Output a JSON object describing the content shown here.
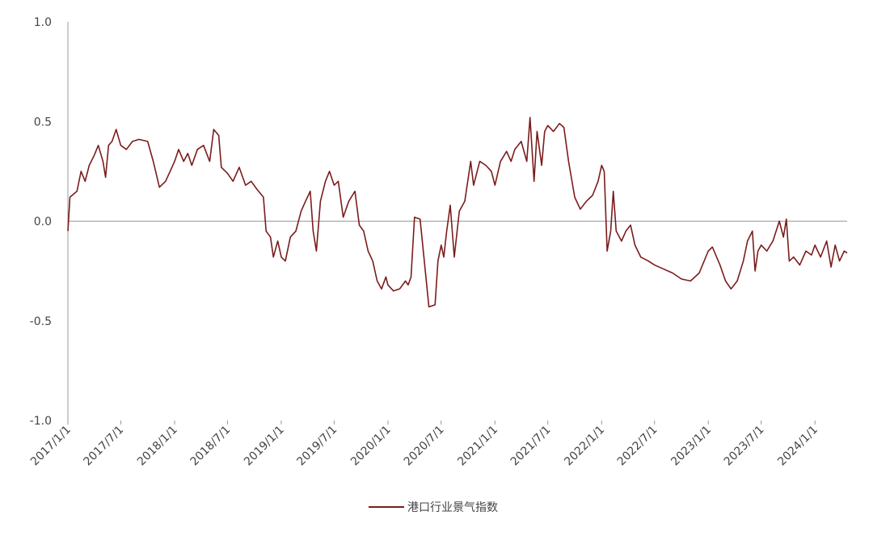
{
  "chart_data": {
    "type": "line",
    "x": [
      "2017/1/1",
      "2017/1/8",
      "2017/2/1",
      "2017/2/15",
      "2017/3/1",
      "2017/3/15",
      "2017/4/1",
      "2017/4/15",
      "2017/5/1",
      "2017/5/10",
      "2017/5/20",
      "2017/6/1",
      "2017/6/15",
      "2017/7/1",
      "2017/7/20",
      "2017/8/10",
      "2017/9/1",
      "2017/10/1",
      "2017/10/20",
      "2017/11/10",
      "2017/12/1",
      "2017/12/20",
      "2018/1/1",
      "2018/1/15",
      "2018/2/1",
      "2018/2/15",
      "2018/3/1",
      "2018/3/20",
      "2018/4/10",
      "2018/5/1",
      "2018/5/15",
      "2018/6/1",
      "2018/6/10",
      "2018/7/1",
      "2018/7/20",
      "2018/8/10",
      "2018/9/1",
      "2018/9/20",
      "2018/10/10",
      "2018/11/1",
      "2018/11/10",
      "2018/11/25",
      "2018/12/5",
      "2018/12/20",
      "2019/1/1",
      "2019/1/15",
      "2019/2/1",
      "2019/2/20",
      "2019/3/10",
      "2019/3/25",
      "2019/4/10",
      "2019/4/20",
      "2019/5/1",
      "2019/5/15",
      "2019/6/1",
      "2019/6/15",
      "2019/7/1",
      "2019/7/15",
      "2019/8/1",
      "2019/8/20",
      "2019/9/10",
      "2019/9/25",
      "2019/10/10",
      "2019/10/25",
      "2019/11/10",
      "2019/11/25",
      "2019/12/10",
      "2019/12/25",
      "2020/1/1",
      "2020/1/20",
      "2020/2/10",
      "2020/3/1",
      "2020/3/10",
      "2020/3/20",
      "2020/4/1",
      "2020/4/20",
      "2020/5/10",
      "2020/5/20",
      "2020/6/10",
      "2020/6/20",
      "2020/7/1",
      "2020/7/10",
      "2020/7/20",
      "2020/8/1",
      "2020/8/15",
      "2020/9/1",
      "2020/9/20",
      "2020/10/10",
      "2020/10/20",
      "2020/11/10",
      "2020/12/1",
      "2020/12/20",
      "2021/1/1",
      "2021/1/20",
      "2021/2/10",
      "2021/2/25",
      "2021/3/10",
      "2021/4/1",
      "2021/4/20",
      "2021/5/1",
      "2021/5/15",
      "2021/5/25",
      "2021/6/10",
      "2021/6/20",
      "2021/7/1",
      "2021/7/20",
      "2021/8/10",
      "2021/8/25",
      "2021/9/10",
      "2021/10/1",
      "2021/10/20",
      "2021/11/10",
      "2021/12/1",
      "2021/12/20",
      "2022/1/1",
      "2022/1/10",
      "2022/1/20",
      "2022/2/1",
      "2022/2/10",
      "2022/2/20",
      "2022/3/10",
      "2022/3/25",
      "2022/4/10",
      "2022/4/25",
      "2022/5/15",
      "2022/6/10",
      "2022/7/1",
      "2022/8/1",
      "2022/9/1",
      "2022/10/1",
      "2022/11/1",
      "2022/12/1",
      "2023/1/1",
      "2023/1/15",
      "2023/2/10",
      "2023/3/1",
      "2023/3/20",
      "2023/4/10",
      "2023/5/1",
      "2023/5/15",
      "2023/6/1",
      "2023/6/10",
      "2023/6/20",
      "2023/7/1",
      "2023/7/20",
      "2023/8/10",
      "2023/9/1",
      "2023/9/15",
      "2023/9/25",
      "2023/10/5",
      "2023/10/20",
      "2023/11/10",
      "2023/12/1",
      "2023/12/20",
      "2024/1/1",
      "2024/1/20",
      "2024/2/10",
      "2024/2/25",
      "2024/3/10",
      "2024/3/25",
      "2024/4/10",
      "2024/4/20"
    ],
    "series": [
      {
        "name": "港口行业景气指数",
        "color": "#7b1c1c",
        "values": [
          -0.05,
          0.12,
          0.15,
          0.25,
          0.2,
          0.28,
          0.33,
          0.38,
          0.3,
          0.22,
          0.38,
          0.4,
          0.46,
          0.38,
          0.36,
          0.4,
          0.41,
          0.4,
          0.3,
          0.17,
          0.2,
          0.26,
          0.3,
          0.36,
          0.3,
          0.34,
          0.28,
          0.36,
          0.38,
          0.3,
          0.46,
          0.43,
          0.27,
          0.24,
          0.2,
          0.27,
          0.18,
          0.2,
          0.16,
          0.12,
          -0.05,
          -0.08,
          -0.18,
          -0.1,
          -0.18,
          -0.2,
          -0.08,
          -0.05,
          0.05,
          0.1,
          0.15,
          -0.05,
          -0.15,
          0.1,
          0.2,
          0.25,
          0.18,
          0.2,
          0.02,
          0.1,
          0.15,
          -0.02,
          -0.05,
          -0.15,
          -0.2,
          -0.3,
          -0.34,
          -0.28,
          -0.32,
          -0.35,
          -0.34,
          -0.3,
          -0.32,
          -0.28,
          0.02,
          0.01,
          -0.28,
          -0.43,
          -0.42,
          -0.2,
          -0.12,
          -0.18,
          -0.05,
          0.08,
          -0.18,
          0.05,
          0.1,
          0.3,
          0.18,
          0.3,
          0.28,
          0.25,
          0.18,
          0.3,
          0.35,
          0.3,
          0.36,
          0.4,
          0.3,
          0.52,
          0.2,
          0.45,
          0.28,
          0.45,
          0.48,
          0.45,
          0.49,
          0.47,
          0.3,
          0.12,
          0.06,
          0.1,
          0.13,
          0.2,
          0.28,
          0.25,
          -0.15,
          -0.05,
          0.15,
          -0.05,
          -0.1,
          -0.05,
          -0.02,
          -0.12,
          -0.18,
          -0.2,
          -0.22,
          -0.24,
          -0.26,
          -0.29,
          -0.3,
          -0.26,
          -0.15,
          -0.13,
          -0.22,
          -0.3,
          -0.34,
          -0.3,
          -0.2,
          -0.1,
          -0.05,
          -0.25,
          -0.15,
          -0.12,
          -0.15,
          -0.1,
          0.0,
          -0.08,
          0.01,
          -0.2,
          -0.18,
          -0.22,
          -0.15,
          -0.17,
          -0.12,
          -0.18,
          -0.1,
          -0.23,
          -0.12,
          -0.2,
          -0.15,
          -0.16
        ]
      }
    ],
    "xlim": [
      "2017/1/1",
      "2024/4/20"
    ],
    "xticks": [
      "2017/1/1",
      "2017/7/1",
      "2018/1/1",
      "2018/7/1",
      "2019/1/1",
      "2019/7/1",
      "2020/1/1",
      "2020/7/1",
      "2021/1/1",
      "2021/7/1",
      "2022/1/1",
      "2022/7/1",
      "2023/1/1",
      "2023/7/1",
      "2024/1/1"
    ],
    "ylim": [
      -1,
      1
    ],
    "yticks": [
      {
        "value": -1,
        "label": "-1.0"
      },
      {
        "value": -0.5,
        "label": "-0.5"
      },
      {
        "value": 0,
        "label": "0.0"
      },
      {
        "value": 0.5,
        "label": "0.5"
      },
      {
        "value": 1,
        "label": "1.0"
      }
    ],
    "legend": "bottom"
  }
}
